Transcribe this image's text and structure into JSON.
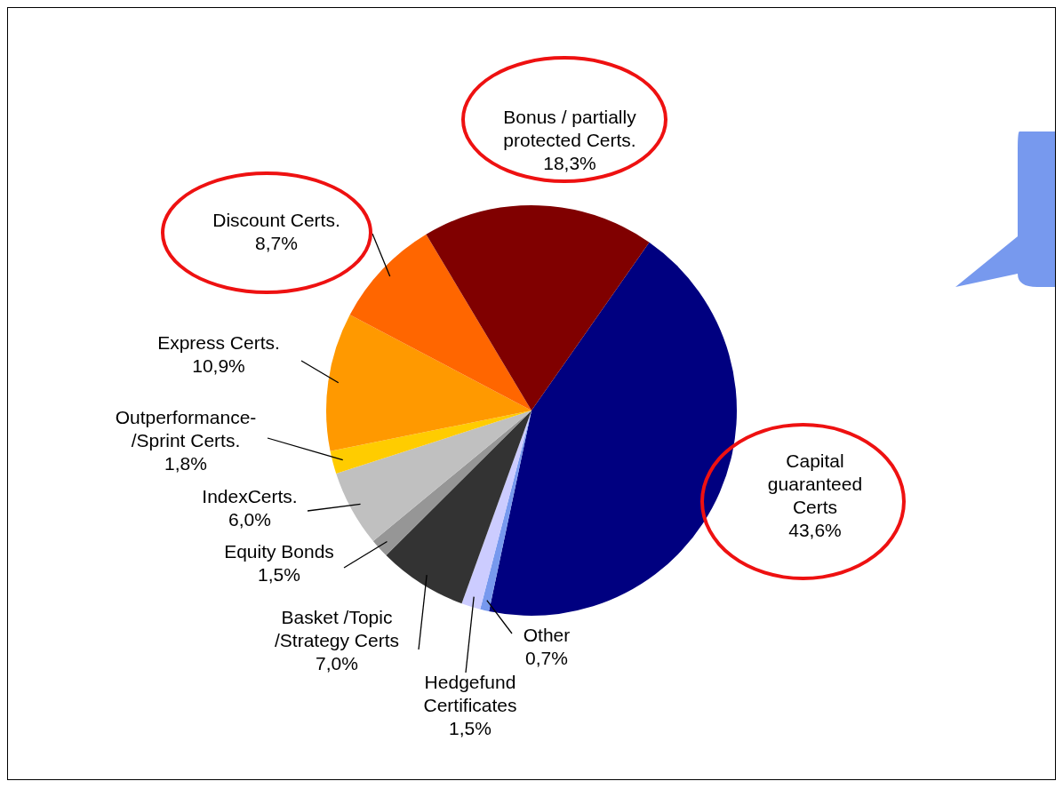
{
  "chart_data": {
    "type": "pie",
    "categories": [
      "Capital guaranteed Certs",
      "Other",
      "Hedgefund Certificates",
      "Basket /Topic /Strategy Certs",
      "Equity Bonds",
      "IndexCerts.",
      "Outperformance- /Sprint Certs.",
      "Express Certs.",
      "Discount Certs.",
      "Bonus / partially protected Certs."
    ],
    "values": [
      43.6,
      0.7,
      1.5,
      7.0,
      1.5,
      6.0,
      1.8,
      10.9,
      8.7,
      18.3
    ],
    "value_labels": [
      "43,6%",
      "0,7%",
      "1,5%",
      "7,0%",
      "1,5%",
      "6,0%",
      "1,8%",
      "10,9%",
      "8,7%",
      "18,3%"
    ],
    "colors": [
      "#000080",
      "#7799ee",
      "#ccccff",
      "#333333",
      "#969696",
      "#c0c0c0",
      "#ffcc00",
      "#ff9900",
      "#ff6600",
      "#800000"
    ],
    "legend": false
  }
}
